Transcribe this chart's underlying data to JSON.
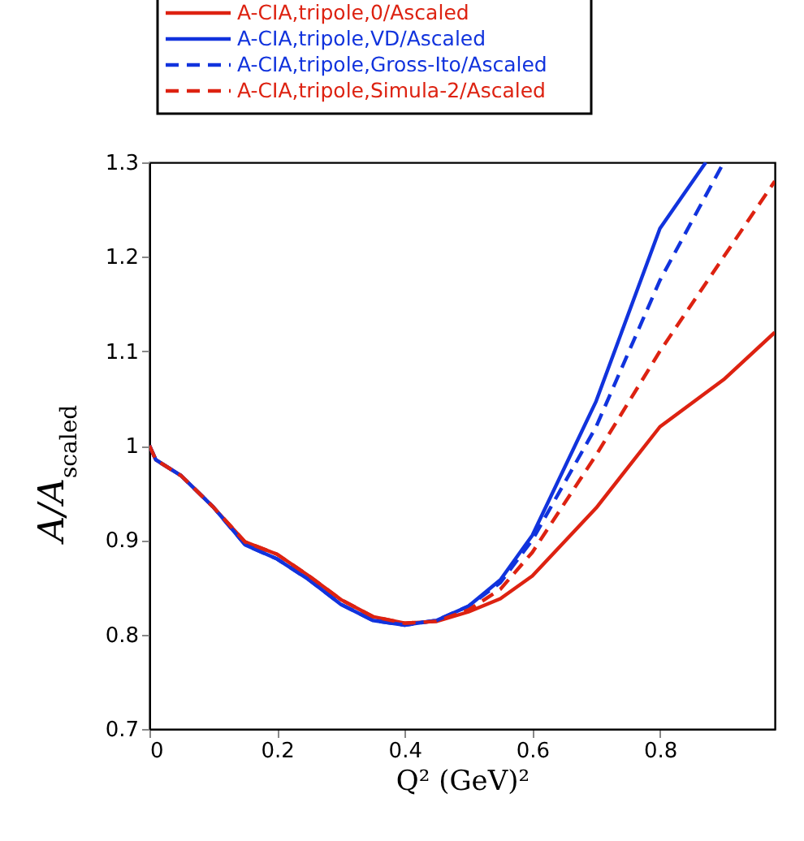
{
  "chart_data": {
    "type": "line",
    "xlabel": "Q² (GeV)²",
    "ylabel": "A/A$_{scaled}$",
    "xlim": [
      0,
      0.98
    ],
    "ylim": [
      0.7,
      1.3
    ],
    "xticks": [
      0,
      0.2,
      0.4,
      0.6,
      0.8
    ],
    "yticks": [
      0.7,
      0.8,
      0.9,
      1,
      1.1,
      1.2,
      1.3
    ],
    "grid": false,
    "legend": "top",
    "marker": "none",
    "series": [
      {
        "name": "A-CIA,tripole,0/Ascaled",
        "color": "#dd2211",
        "line_style": "solid",
        "x": [
          0,
          0.01,
          0.05,
          0.1,
          0.15,
          0.2,
          0.25,
          0.3,
          0.35,
          0.4,
          0.45,
          0.5,
          0.55,
          0.6,
          0.7,
          0.8,
          0.9,
          0.98
        ],
        "values": [
          1.0,
          0.985,
          0.968,
          0.935,
          0.898,
          0.885,
          0.862,
          0.837,
          0.819,
          0.812,
          0.814,
          0.824,
          0.838,
          0.862,
          0.934,
          1.02,
          1.07,
          1.12
        ]
      },
      {
        "name": "A-CIA,tripole,VD/Ascaled",
        "color": "#1133dd",
        "line_style": "solid",
        "x": [
          0,
          0.01,
          0.05,
          0.1,
          0.15,
          0.2,
          0.25,
          0.3,
          0.35,
          0.4,
          0.45,
          0.5,
          0.55,
          0.6,
          0.7,
          0.8,
          0.872
        ],
        "values": [
          1.0,
          0.985,
          0.968,
          0.935,
          0.895,
          0.88,
          0.858,
          0.832,
          0.815,
          0.81,
          0.815,
          0.83,
          0.858,
          0.905,
          1.047,
          1.23,
          1.3
        ]
      },
      {
        "name": "A-CIA,tripole,Gross-Ito/Ascaled",
        "color": "#1133dd",
        "line_style": "dashed",
        "x": [
          0,
          0.01,
          0.05,
          0.1,
          0.15,
          0.2,
          0.25,
          0.3,
          0.35,
          0.4,
          0.45,
          0.5,
          0.55,
          0.6,
          0.7,
          0.8,
          0.9
        ],
        "values": [
          1.0,
          0.985,
          0.968,
          0.935,
          0.895,
          0.88,
          0.858,
          0.832,
          0.815,
          0.81,
          0.815,
          0.83,
          0.855,
          0.9,
          1.02,
          1.175,
          1.3
        ]
      },
      {
        "name": "A-CIA,tripole,Simula-2/Ascaled",
        "color": "#dd2211",
        "line_style": "dashed",
        "x": [
          0,
          0.01,
          0.05,
          0.1,
          0.15,
          0.2,
          0.25,
          0.3,
          0.35,
          0.4,
          0.45,
          0.5,
          0.55,
          0.6,
          0.7,
          0.8,
          0.9,
          0.98
        ],
        "values": [
          1.0,
          0.985,
          0.968,
          0.935,
          0.898,
          0.885,
          0.862,
          0.837,
          0.819,
          0.812,
          0.814,
          0.826,
          0.848,
          0.887,
          0.99,
          1.1,
          1.2,
          1.28
        ]
      }
    ]
  }
}
